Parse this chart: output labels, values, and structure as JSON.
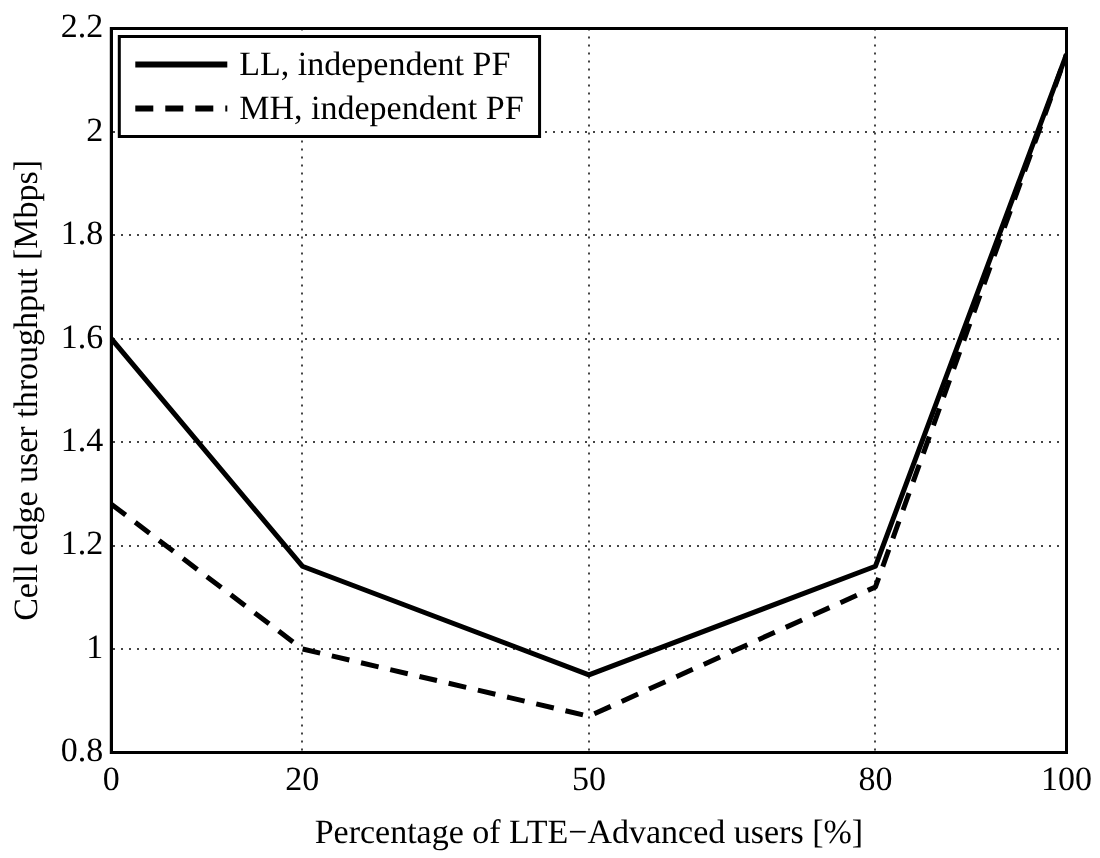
{
  "chart_data": {
    "type": "line",
    "xlabel": "Percentage of LTE−Advanced users [%]",
    "ylabel": "Cell edge user throughput [Mbps]",
    "x": [
      0,
      20,
      50,
      80,
      100
    ],
    "series": [
      {
        "name": "LL, independent PF",
        "color": "#000000",
        "line_style": "solid",
        "values": [
          1.6,
          1.16,
          0.95,
          1.16,
          2.15
        ]
      },
      {
        "name": "MH, independent PF",
        "color": "#000000",
        "line_style": "dashed",
        "values": [
          1.28,
          1.0,
          0.87,
          1.12,
          2.15
        ]
      }
    ],
    "xlim": [
      0,
      100
    ],
    "xticks": [
      0,
      20,
      50,
      80,
      100
    ],
    "ylim": [
      0.8,
      2.2
    ],
    "yticks": [
      0.8,
      1,
      1.2,
      1.4,
      1.6,
      1.8,
      2,
      2.2
    ],
    "grid": true,
    "legend": "top left",
    "marker": "none"
  }
}
